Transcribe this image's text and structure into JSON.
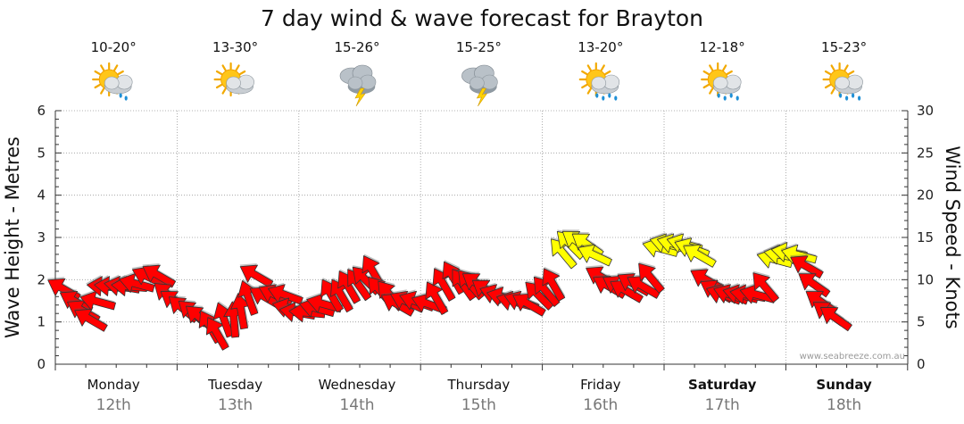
{
  "chart_data": {
    "type": "scatter",
    "title": "7 day wind & wave forecast for Brayton",
    "ylabel_left": "Wave Height - Metres",
    "ylabel_right": "Wind Speed - Knots",
    "ylim_left": [
      0,
      6
    ],
    "ylim_right": [
      0,
      30
    ],
    "yticks_left": [
      "0",
      "1",
      "2",
      "3",
      "4",
      "5",
      "6"
    ],
    "yticks_right": [
      "0",
      "5",
      "10",
      "15",
      "20",
      "25",
      "30"
    ],
    "grid": true,
    "credit": "www.seabreeze.com.au",
    "colors": {
      "calm": "#ff0000",
      "strong": "#ffff00",
      "outline": "#333333"
    },
    "days": [
      {
        "name": "Monday",
        "date": "12th",
        "bold": false,
        "temp": "10-20°",
        "icon": "sun-cloud-drizzle-icon"
      },
      {
        "name": "Tuesday",
        "date": "13th",
        "bold": false,
        "temp": "13-30°",
        "icon": "sun-cloud-icon"
      },
      {
        "name": "Wednesday",
        "date": "14th",
        "bold": false,
        "temp": "15-26°",
        "icon": "thunderstorm-icon"
      },
      {
        "name": "Thursday",
        "date": "15th",
        "bold": false,
        "temp": "15-25°",
        "icon": "thunderstorm-icon"
      },
      {
        "name": "Friday",
        "date": "16th",
        "bold": false,
        "temp": "13-20°",
        "icon": "sun-cloud-rain-icon"
      },
      {
        "name": "Saturday",
        "date": "17th",
        "bold": true,
        "temp": "12-18°",
        "icon": "sun-cloud-rain-icon"
      },
      {
        "name": "Sunday",
        "date": "18th",
        "bold": true,
        "temp": "15-23°",
        "icon": "sun-cloud-rain-icon"
      }
    ],
    "wind": {
      "units": "knots",
      "note": "each entry [day_offset, speed_knots, direction_of_travel_degrees]; 0 deg = pointing right (east), 90 = up",
      "points": [
        [
          0.0,
          8.9,
          150
        ],
        [
          0.1,
          7.4,
          150
        ],
        [
          0.16,
          6.3,
          150
        ],
        [
          0.22,
          5.3,
          150
        ],
        [
          0.28,
          7.4,
          165
        ],
        [
          0.34,
          9.2,
          175
        ],
        [
          0.4,
          9.2,
          175
        ],
        [
          0.48,
          9.2,
          170
        ],
        [
          0.54,
          9.2,
          175
        ],
        [
          0.6,
          9.5,
          165
        ],
        [
          0.7,
          10.3,
          155
        ],
        [
          0.78,
          10.5,
          150
        ],
        [
          0.86,
          8.2,
          140
        ],
        [
          0.92,
          7.4,
          145
        ],
        [
          0.98,
          6.6,
          140
        ],
        [
          1.06,
          6.1,
          140
        ],
        [
          1.12,
          5.5,
          140
        ],
        [
          1.2,
          4.5,
          120
        ],
        [
          1.26,
          3.7,
          120
        ],
        [
          1.32,
          5.3,
          110
        ],
        [
          1.4,
          5.3,
          95
        ],
        [
          1.46,
          6.3,
          100
        ],
        [
          1.52,
          7.9,
          110
        ],
        [
          1.58,
          10.5,
          150
        ],
        [
          1.66,
          7.9,
          150
        ],
        [
          1.74,
          8.2,
          155
        ],
        [
          1.82,
          8.2,
          160
        ],
        [
          1.86,
          6.6,
          165
        ],
        [
          1.92,
          6.1,
          170
        ],
        [
          2.0,
          6.1,
          175
        ],
        [
          2.08,
          6.6,
          165
        ],
        [
          2.14,
          7.1,
          165
        ],
        [
          2.2,
          8.2,
          120
        ],
        [
          2.28,
          8.2,
          120
        ],
        [
          2.34,
          9.2,
          120
        ],
        [
          2.42,
          9.5,
          125
        ],
        [
          2.48,
          10.0,
          135
        ],
        [
          2.54,
          11.0,
          120
        ],
        [
          2.6,
          8.7,
          130
        ],
        [
          2.68,
          8.2,
          130
        ],
        [
          2.74,
          7.1,
          150
        ],
        [
          2.82,
          7.4,
          155
        ],
        [
          2.9,
          7.4,
          160
        ],
        [
          3.0,
          7.1,
          160
        ],
        [
          3.06,
          7.9,
          120
        ],
        [
          3.12,
          9.5,
          120
        ],
        [
          3.2,
          10.3,
          120
        ],
        [
          3.28,
          9.5,
          125
        ],
        [
          3.34,
          9.5,
          130
        ],
        [
          3.4,
          9.5,
          145
        ],
        [
          3.48,
          8.7,
          145
        ],
        [
          3.56,
          8.2,
          160
        ],
        [
          3.62,
          7.9,
          165
        ],
        [
          3.7,
          7.4,
          165
        ],
        [
          3.76,
          7.4,
          160
        ],
        [
          3.82,
          7.1,
          150
        ],
        [
          3.9,
          8.2,
          135
        ],
        [
          3.96,
          8.7,
          130
        ],
        [
          4.02,
          9.5,
          120
        ],
        [
          4.1,
          13.2,
          130
        ],
        [
          4.16,
          14.2,
          135
        ],
        [
          4.22,
          14.5,
          145
        ],
        [
          4.3,
          14.2,
          145
        ],
        [
          4.36,
          12.9,
          155
        ],
        [
          4.42,
          10.3,
          150
        ],
        [
          4.48,
          9.2,
          150
        ],
        [
          4.56,
          9.2,
          150
        ],
        [
          4.62,
          8.7,
          150
        ],
        [
          4.68,
          9.5,
          150
        ],
        [
          4.76,
          9.2,
          150
        ],
        [
          4.82,
          10.3,
          130
        ],
        [
          4.9,
          13.7,
          165
        ],
        [
          4.96,
          14.2,
          165
        ],
        [
          5.02,
          14.2,
          165
        ],
        [
          5.1,
          14.2,
          165
        ],
        [
          5.16,
          13.7,
          160
        ],
        [
          5.22,
          12.9,
          150
        ],
        [
          5.28,
          10.0,
          150
        ],
        [
          5.36,
          8.7,
          150
        ],
        [
          5.42,
          8.2,
          160
        ],
        [
          5.48,
          8.2,
          160
        ],
        [
          5.56,
          8.2,
          165
        ],
        [
          5.62,
          8.2,
          170
        ],
        [
          5.7,
          8.2,
          165
        ],
        [
          5.76,
          9.2,
          130
        ],
        [
          5.84,
          12.4,
          165
        ],
        [
          5.9,
          12.9,
          170
        ],
        [
          5.96,
          13.2,
          170
        ],
        [
          6.04,
          12.9,
          165
        ],
        [
          6.1,
          11.6,
          150
        ],
        [
          6.16,
          9.5,
          145
        ],
        [
          6.22,
          7.4,
          145
        ],
        [
          6.28,
          6.1,
          145
        ],
        [
          6.34,
          5.5,
          145
        ]
      ]
    }
  }
}
